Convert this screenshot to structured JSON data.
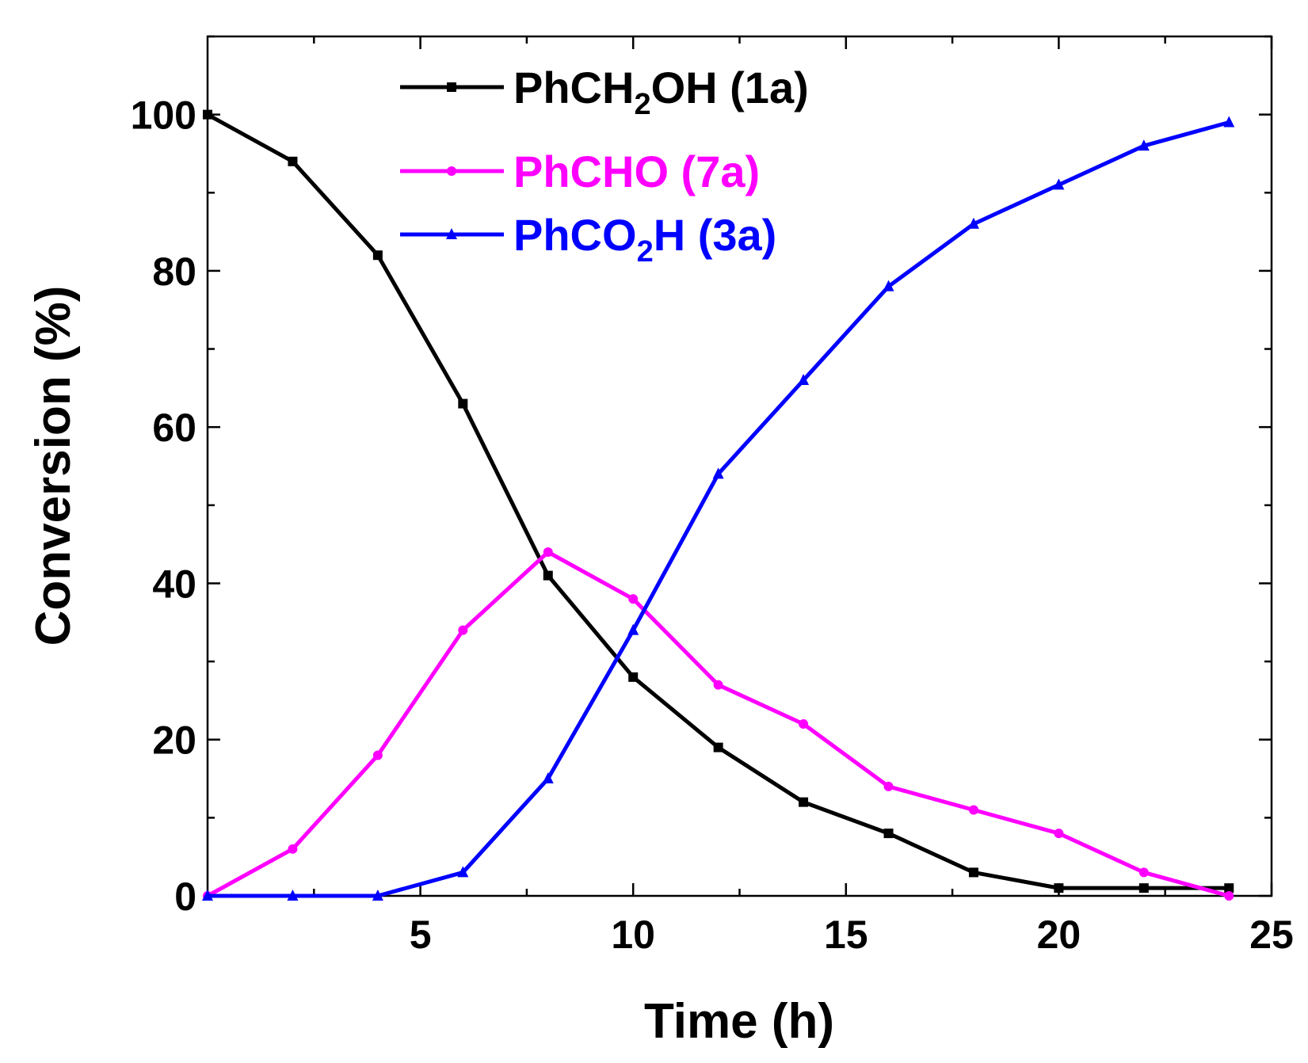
{
  "chart_data": {
    "type": "line",
    "title": "",
    "xlabel": "Time (h)",
    "ylabel": "Conversion (%)",
    "xlim": [
      0,
      25
    ],
    "ylim": [
      0,
      110
    ],
    "xticks": [
      5,
      10,
      15,
      20,
      25
    ],
    "xtick_labels": [
      "5",
      "10",
      "15",
      "20",
      "25"
    ],
    "yticks": [
      0,
      20,
      40,
      60,
      80,
      100
    ],
    "ytick_labels": [
      "0",
      "20",
      "40",
      "60",
      "80",
      "100"
    ],
    "grid": false,
    "legend_position": "top-center",
    "x": [
      0,
      2,
      4,
      6,
      8,
      10,
      12,
      14,
      16,
      18,
      20,
      22,
      24
    ],
    "series": [
      {
        "name": "PhCH2OH (1a)",
        "legend_parts": [
          "PhCH",
          "2",
          "OH (1a)"
        ],
        "color": "#000000",
        "marker": "square",
        "values": [
          100,
          94,
          82,
          63,
          41,
          28,
          19,
          12,
          8,
          3,
          1,
          1,
          1
        ]
      },
      {
        "name": "PhCHO (7a)",
        "legend_parts": [
          "PhCHO (7a)",
          "",
          ""
        ],
        "color": "#ff00ff",
        "marker": "circle",
        "values": [
          0,
          6,
          18,
          34,
          44,
          38,
          27,
          22,
          14,
          11,
          8,
          3,
          0
        ]
      },
      {
        "name": "PhCO2H (3a)",
        "legend_parts": [
          "PhCO",
          "2",
          "H (3a)"
        ],
        "color": "#0000ff",
        "marker": "triangle",
        "values": [
          0,
          0,
          0,
          3,
          15,
          34,
          54,
          66,
          78,
          86,
          91,
          96,
          99
        ]
      }
    ]
  }
}
